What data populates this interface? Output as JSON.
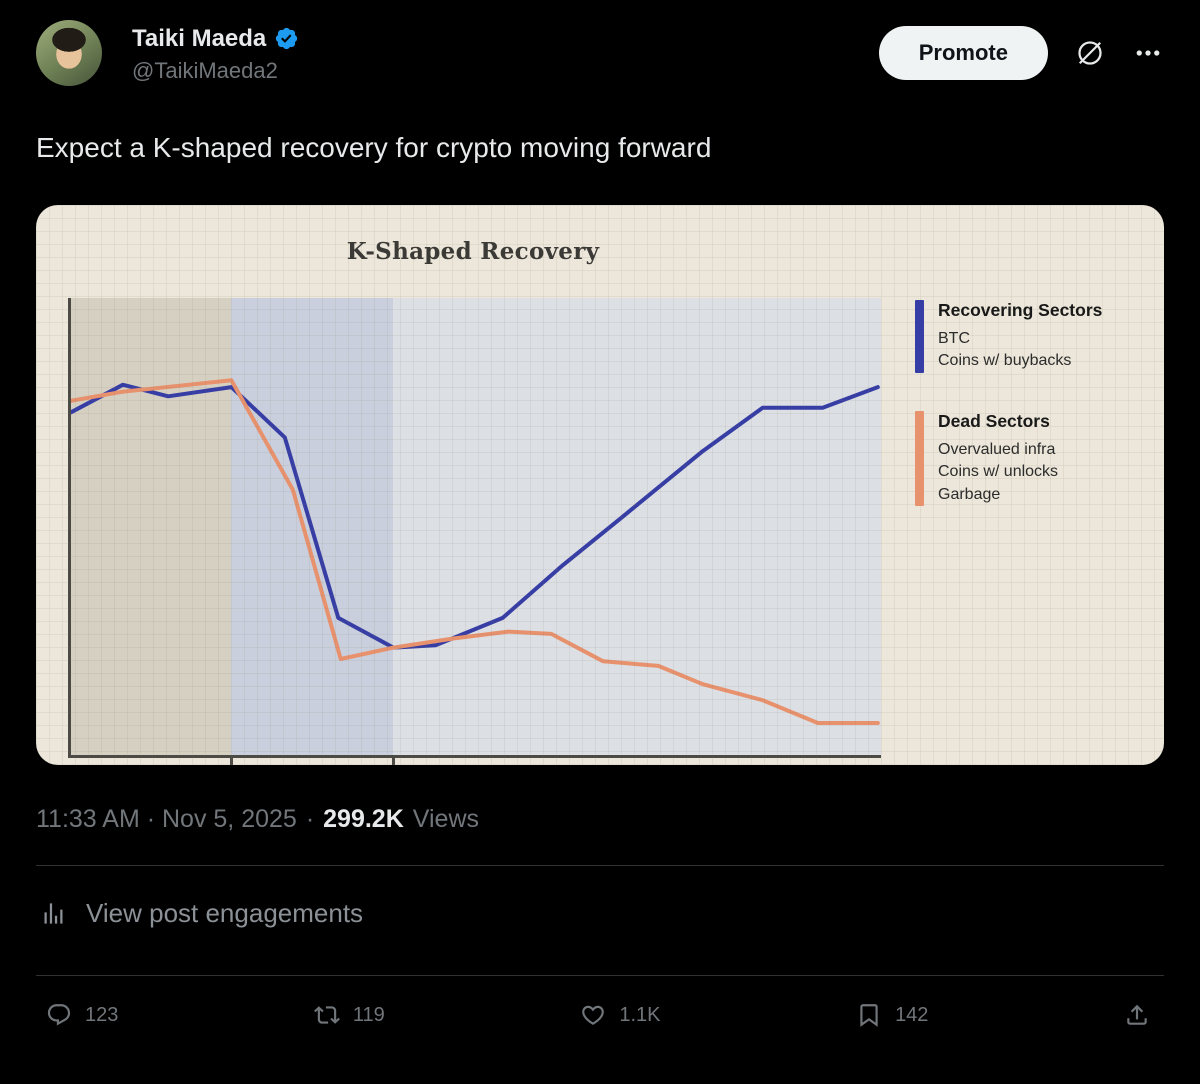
{
  "header": {
    "display_name": "Taiki Maeda",
    "handle": "@TaikiMaeda2",
    "promote_label": "Promote"
  },
  "post": {
    "text": "Expect a K-shaped recovery for crypto moving forward",
    "timestamp": "11:33 AM · Nov 5, 2025",
    "separator": "·",
    "views_count": "299.2K",
    "views_label": "Views"
  },
  "engagements_link": {
    "label": "View post engagements"
  },
  "actions": {
    "replies": "123",
    "reposts": "119",
    "likes": "1.1K",
    "bookmarks": "142"
  },
  "colors": {
    "background": "#000000",
    "text_primary": "#e7e9ea",
    "text_secondary": "#71767b",
    "accent_blue": "#1d9bf0",
    "divider": "#2f3336",
    "promote_bg": "#eff3f4",
    "chart_bg": "#ece7da"
  },
  "chart_data": {
    "type": "line",
    "title": "K-Shaped Recovery",
    "xlabel": "",
    "ylabel": "",
    "grid": true,
    "legend_position": "right",
    "x_range_pct": [
      0,
      100
    ],
    "y_range_pct": [
      0,
      100
    ],
    "regions": [
      {
        "x": [
          0,
          19.8
        ],
        "color": "#d6d0c3"
      },
      {
        "x": [
          19.8,
          39.8
        ],
        "color": "#c9cfdc"
      },
      {
        "x": [
          39.8,
          100
        ],
        "color": "#dcdfe3"
      }
    ],
    "ticks": [
      19.8,
      39.8
    ],
    "series": [
      {
        "name": "Recovering Sectors",
        "items": [
          "BTC",
          "Coins w/ buybacks"
        ],
        "color": "#363da5",
        "points": [
          [
            0,
            75
          ],
          [
            6.4,
            81
          ],
          [
            12,
            78.5
          ],
          [
            19.8,
            80.5
          ],
          [
            26.4,
            69.5
          ],
          [
            33,
            30
          ],
          [
            39.8,
            23.5
          ],
          [
            45,
            24
          ],
          [
            53.3,
            30
          ],
          [
            60.7,
            41.5
          ],
          [
            68,
            52
          ],
          [
            78,
            66.5
          ],
          [
            85.4,
            76
          ],
          [
            92.8,
            76
          ],
          [
            99.6,
            80.5
          ]
        ]
      },
      {
        "name": "Dead Sectors",
        "items": [
          "Overvalued infra",
          "Coins w/ unlocks",
          "Garbage"
        ],
        "color": "#e8916d",
        "points": [
          [
            0,
            77.5
          ],
          [
            6.4,
            79.5
          ],
          [
            19.8,
            82
          ],
          [
            27.4,
            58
          ],
          [
            33.3,
            21
          ],
          [
            39.8,
            23.5
          ],
          [
            47.2,
            25.5
          ],
          [
            54,
            27
          ],
          [
            59.3,
            26.5
          ],
          [
            65.7,
            20.5
          ],
          [
            72.5,
            19.5
          ],
          [
            78,
            15.5
          ],
          [
            85.4,
            12
          ],
          [
            92.2,
            7
          ],
          [
            99.6,
            7
          ]
        ]
      }
    ]
  }
}
